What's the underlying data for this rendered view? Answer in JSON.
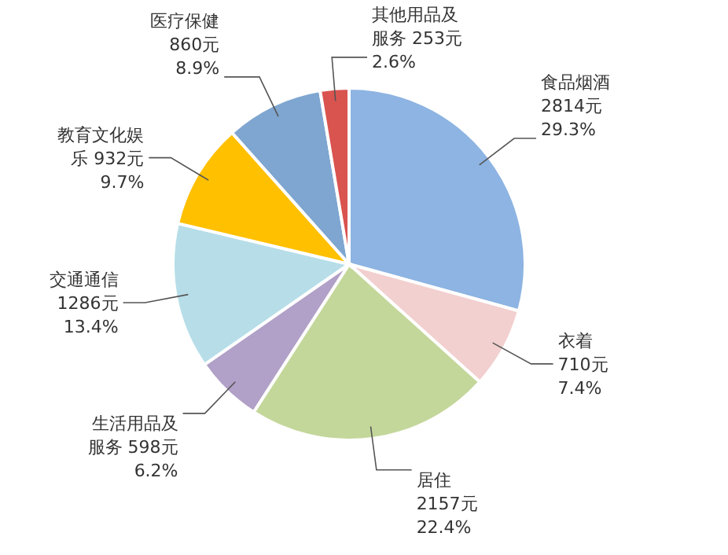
{
  "chart_data": {
    "type": "pie",
    "categories": [
      "食品烟酒",
      "衣着",
      "居住",
      "生活用品及服务",
      "交通通信",
      "教育文化娱乐",
      "医疗保健",
      "其他用品及服务"
    ],
    "values": [
      2814,
      710,
      2157,
      598,
      1286,
      932,
      860,
      253
    ],
    "value_labels": [
      "2814元\n29.3%",
      "710元\n7.4%",
      "2157元\n22.4%",
      "598元\n6.2%",
      "1286元\n13.4%",
      "932元\n9.7%",
      "860元\n8.9%",
      "253元\n2.6%"
    ],
    "colors": [
      "#8db4e2",
      "#f2d0cf",
      "#c4d79b",
      "#b1a0c7",
      "#b7dee8",
      "#ffc000",
      "#7ea6d0",
      "#d9534f"
    ]
  }
}
